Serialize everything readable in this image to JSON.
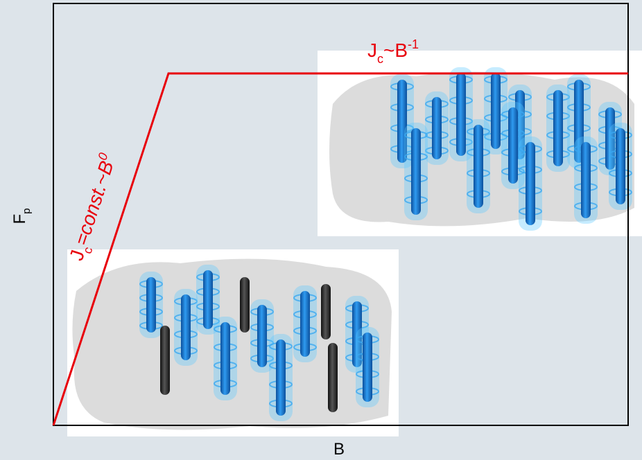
{
  "x_axis": {
    "label": "B"
  },
  "y_axis": {
    "label": "F",
    "subscript": "p"
  },
  "annotations": [
    {
      "main": "J",
      "subscript": "c",
      "rest": "~B",
      "superscript": "-1"
    },
    {
      "main": "J",
      "subscript": "c",
      "rest": "=const.~B",
      "superscript": "0"
    }
  ]
}
